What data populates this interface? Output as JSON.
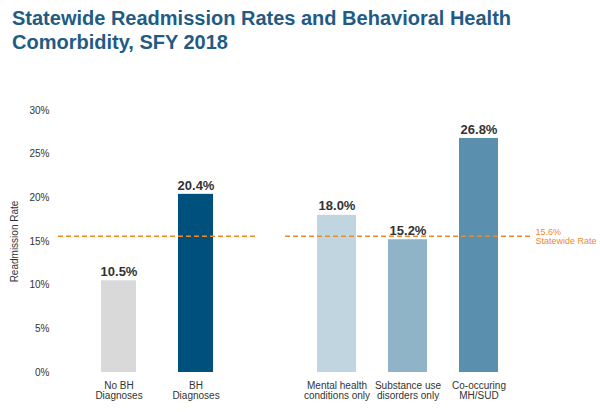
{
  "chart_data": [
    {
      "type": "bar",
      "title": "Statewide Readmission Rates and Behavioral Health Comorbidity, SFY 2018",
      "ylabel": "Readmission Rate",
      "categories": [
        "No BH\nDiagnoses",
        "BH\nDiagnoses"
      ],
      "values": [
        10.5,
        20.4
      ],
      "value_labels": [
        "10.5%",
        "20.4%"
      ],
      "colors": [
        "#d9d9d9",
        "#00507e"
      ],
      "data_labels": true,
      "grid": false,
      "ylim": [
        0,
        30
      ],
      "yticks": [
        {
          "value": 0,
          "label": "0%"
        },
        {
          "value": 5,
          "label": "5%"
        },
        {
          "value": 10,
          "label": "10%"
        },
        {
          "value": 15,
          "label": "15%"
        },
        {
          "value": 20,
          "label": "20%"
        },
        {
          "value": 25,
          "label": "25%"
        },
        {
          "value": 30,
          "label": "30%"
        }
      ],
      "annotations": [
        {
          "y": 15.6,
          "line_style": "dashed",
          "color": "#f08a24"
        }
      ]
    },
    {
      "type": "bar",
      "categories": [
        "Mental health\nconditions only",
        "Substance use\ndisorders only",
        "Co-occuring\nMH/SUD"
      ],
      "values": [
        18.0,
        15.2,
        26.8
      ],
      "value_labels": [
        "18.0%",
        "15.2%",
        "26.8%"
      ],
      "colors": [
        "#c0d5e0",
        "#8fb3c7",
        "#5b8fae"
      ],
      "data_labels": true,
      "grid": false,
      "tick_labels": "x",
      "ylim": [
        0,
        30
      ],
      "yticks": [
        0,
        5,
        10,
        15,
        20,
        25,
        30
      ],
      "annotations": [
        {
          "y": 15.6,
          "line_style": "dashed",
          "color": "#f08a24",
          "text": [
            "15.6%",
            "Statewide Rate"
          ]
        }
      ]
    }
  ]
}
